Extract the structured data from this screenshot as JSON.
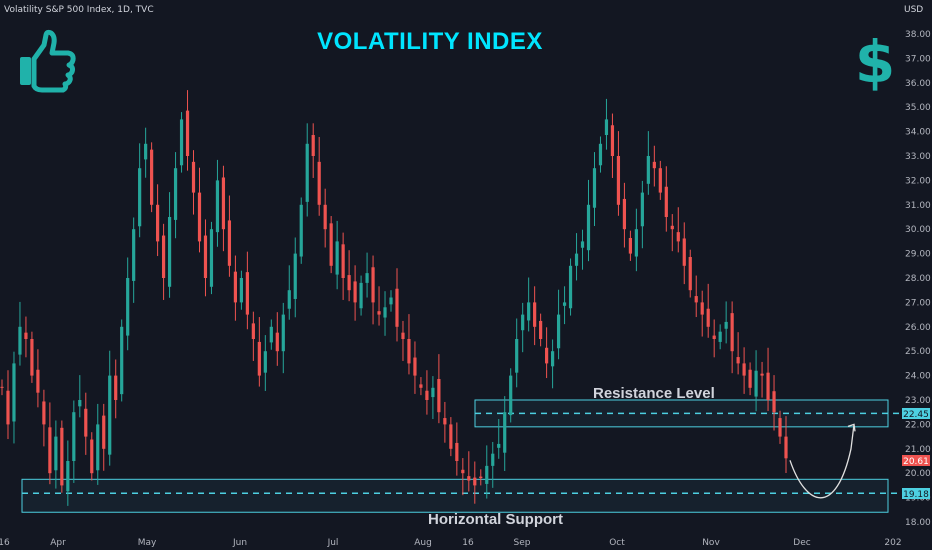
{
  "header": {
    "symbol_line": "Volatility S&P 500 Index, 1D, TVC",
    "currency": "USD"
  },
  "title": "VOLATILITY INDEX",
  "icons": {
    "left": "thumbs-up-icon",
    "right": "dollar-sign-icon",
    "accent_color": "#20b2aa"
  },
  "colors": {
    "up": "#26a69a",
    "down": "#ef5350",
    "zone": "#4dd0e1",
    "background": "#131722"
  },
  "annotations": {
    "resistance_label": "Resistance Level",
    "support_label": "Horizontal Support",
    "resistance_price": "22.45",
    "support_price": "19.18",
    "last_price": "20.61"
  },
  "chart_data": {
    "type": "candlestick",
    "yaxis": {
      "ticks": [
        "18.00",
        "19.00",
        "20.00",
        "21.00",
        "22.00",
        "23.00",
        "24.00",
        "25.00",
        "26.00",
        "27.00",
        "28.00",
        "29.00",
        "30.00",
        "31.00",
        "32.00",
        "33.00",
        "34.00",
        "35.00",
        "36.00",
        "37.00",
        "38.00"
      ],
      "ylim": [
        17.5,
        38.5
      ]
    },
    "xaxis": {
      "ticks": [
        "16",
        "Apr",
        "May",
        "Jun",
        "Jul",
        "Aug",
        "16",
        "Sep",
        "Oct",
        "Nov",
        "Dec",
        "202"
      ]
    },
    "resistance_zone": [
      21.9,
      23.0
    ],
    "support_zone": [
      18.4,
      19.75
    ],
    "close_series": [
      23.5,
      22.0,
      24.5,
      26.0,
      25.5,
      24.0,
      23.3,
      22.0,
      20.0,
      21.5,
      19.5,
      20.5,
      22.5,
      23.0,
      21.5,
      20.0,
      22.0,
      21.0,
      24.0,
      23.0,
      26.0,
      28.0,
      30.0,
      32.5,
      33.5,
      31.0,
      29.5,
      28.0,
      30.5,
      32.5,
      34.5,
      33.0,
      31.5,
      29.5,
      28.0,
      30.0,
      32.0,
      30.0,
      28.5,
      27.0,
      28.0,
      26.5,
      25.5,
      24.0,
      25.0,
      26.0,
      25.0,
      26.5,
      27.5,
      29.0,
      31.0,
      33.5,
      33.0,
      31.0,
      30.0,
      28.5,
      29.5,
      28.0,
      27.5,
      27.0,
      27.8,
      28.2,
      27.0,
      26.5,
      26.8,
      27.2,
      26.0,
      25.5,
      24.5,
      24.0,
      23.5,
      23.0,
      23.5,
      22.5,
      22.0,
      21.0,
      20.5,
      20.0,
      19.7,
      19.5,
      19.8,
      20.3,
      20.8,
      21.2,
      22.5,
      24.0,
      25.5,
      26.5,
      27.0,
      26.0,
      25.5,
      24.5,
      25.0,
      26.5,
      27.0,
      28.5,
      29.0,
      29.5,
      31.0,
      32.5,
      33.5,
      34.5,
      33.0,
      31.0,
      30.0,
      29.0,
      30.0,
      31.5,
      33.0,
      32.5,
      31.5,
      30.5,
      30.0,
      29.5,
      28.5,
      27.5,
      27.0,
      26.5,
      26.0,
      25.5,
      25.8,
      26.2,
      25.0,
      24.5,
      24.0,
      23.5,
      24.2,
      24.0,
      23.0,
      22.5,
      21.5,
      20.61
    ],
    "projection": "curve from 20.61 down to support (~19.2) then up toward ~22.0"
  }
}
